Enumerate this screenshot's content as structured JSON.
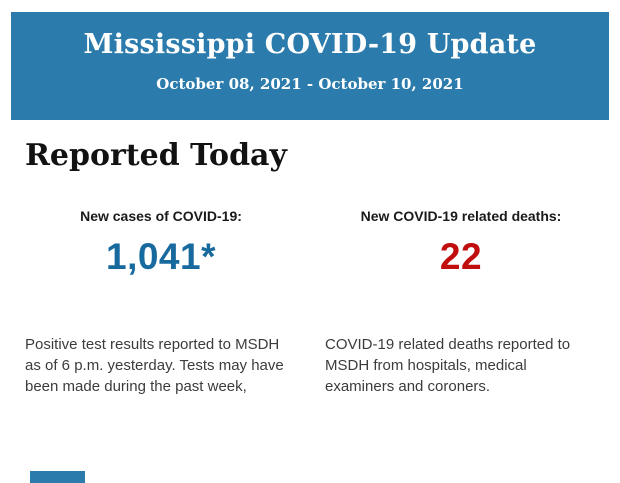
{
  "header": {
    "title": "Mississippi COVID-19 Update",
    "date_range": "October 08, 2021 - October 10, 2021",
    "bg_color": "#2b7bac",
    "text_color": "#ffffff"
  },
  "section": {
    "heading": "Reported Today"
  },
  "stats": [
    {
      "label": "New cases of COVID-19:",
      "value": "1,041*",
      "value_color": "#17699e",
      "description": "Positive test results reported to MSDH as of 6 p.m. yesterday. Tests may have been made during the past week,"
    },
    {
      "label": "New COVID-19 related deaths:",
      "value": "22",
      "value_color": "#c00d0d",
      "description": "COVID-19 related deaths reported to MSDH from hospitals, medical examiners and coroners."
    }
  ],
  "footer": {
    "partial_next_block_color": "#2b7bac"
  }
}
